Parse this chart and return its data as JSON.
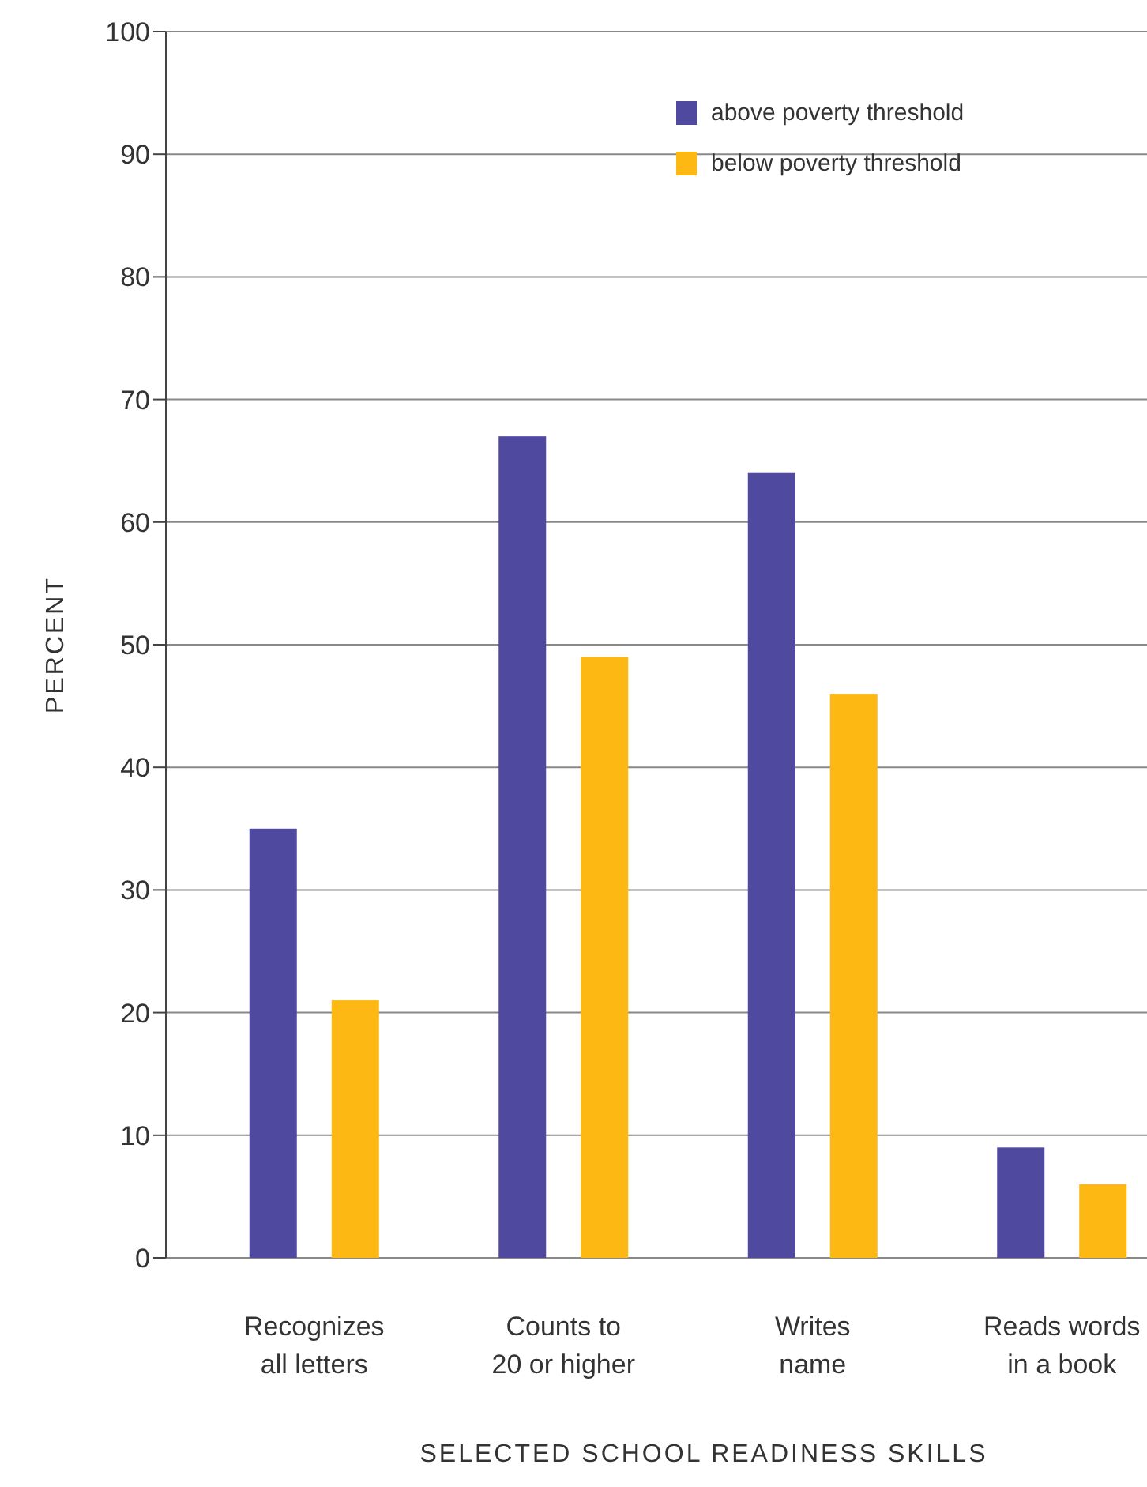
{
  "chart_data": {
    "type": "bar",
    "xlabel": "SELECTED SCHOOL READINESS SKILLS",
    "ylabel": "PERCENT",
    "categories": [
      "Recognizes all letters",
      "Counts to 20 or higher",
      "Writes name",
      "Reads words in a book"
    ],
    "series": [
      {
        "name": "above poverty threshold",
        "color": "#4f4aa0",
        "values": [
          35,
          67,
          64,
          9
        ]
      },
      {
        "name": "below poverty threshold",
        "color": "#fdb813",
        "values": [
          21,
          49,
          46,
          6
        ]
      }
    ],
    "ylim": [
      0,
      100
    ],
    "yticks": [
      0,
      10,
      20,
      30,
      40,
      50,
      60,
      70,
      80,
      90,
      100
    ],
    "grid": "y",
    "legend": "top right"
  }
}
